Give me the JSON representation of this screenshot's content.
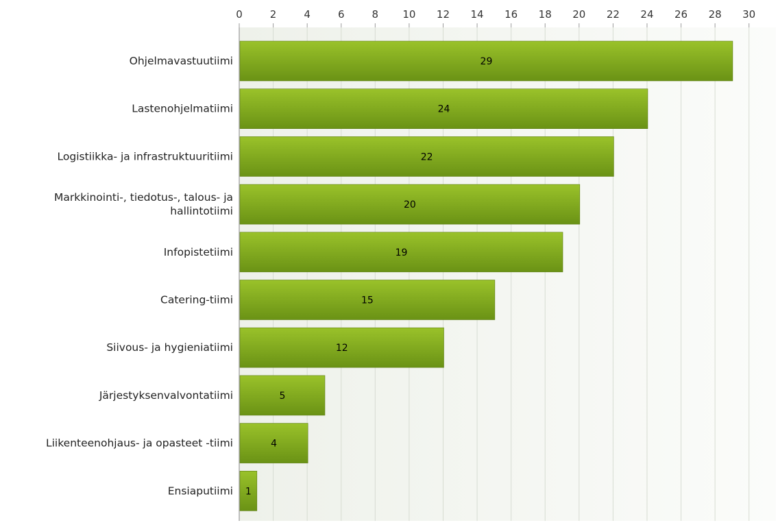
{
  "chart_data": {
    "type": "bar",
    "orientation": "horizontal",
    "categories": [
      "Ohjelmavastuutiimi",
      "Lastenohjelmatiimi",
      "Logistiikka- ja infrastruktuuritiimi",
      "Markkinointi-, tiedotus-, talous- ja hallintotiimi",
      "Infopistetiimi",
      "Catering-tiimi",
      "Siivous- ja hygieniatiimi",
      "Järjestyksenvalvontatiimi",
      "Liikenteenohjaus- ja opasteet -tiimi",
      "Ensiaputiimi"
    ],
    "category_lines": [
      [
        "Ohjelmavastuutiimi"
      ],
      [
        "Lastenohjelmatiimi"
      ],
      [
        "Logistiikka- ja infrastruktuuritiimi"
      ],
      [
        "Markkinointi-, tiedotus-, talous- ja",
        "hallintotiimi"
      ],
      [
        "Infopistetiimi"
      ],
      [
        "Catering-tiimi"
      ],
      [
        "Siivous- ja hygieniatiimi"
      ],
      [
        "Järjestyksenvalvontatiimi"
      ],
      [
        "Liikenteenohjaus- ja opasteet -tiimi"
      ],
      [
        "Ensiaputiimi"
      ]
    ],
    "values": [
      29,
      24,
      22,
      20,
      19,
      15,
      12,
      5,
      4,
      1
    ],
    "value_labels": [
      "29",
      "24",
      "22",
      "20",
      "19",
      "15",
      "12",
      "5",
      "4",
      "1"
    ],
    "x_ticks": [
      0,
      2,
      4,
      6,
      8,
      10,
      12,
      14,
      16,
      18,
      20,
      22,
      24,
      26,
      28,
      30
    ],
    "x_tick_labels": [
      "0",
      "2",
      "4",
      "6",
      "8",
      "10",
      "12",
      "14",
      "16",
      "18",
      "20",
      "22",
      "24",
      "26",
      "28",
      "30"
    ],
    "xlim": [
      0,
      31.5
    ],
    "axis_position": "top",
    "grid": true,
    "title": "",
    "xlabel": "",
    "ylabel": "",
    "colors": {
      "bar_top": "#9ac22a",
      "bar_bottom": "#6a9215",
      "bar_stroke": "#5c7d12",
      "plot_background": "#eef1ea",
      "grid": "#d7dcd2",
      "axis": "#9a9a9a",
      "text": "#000000"
    }
  }
}
